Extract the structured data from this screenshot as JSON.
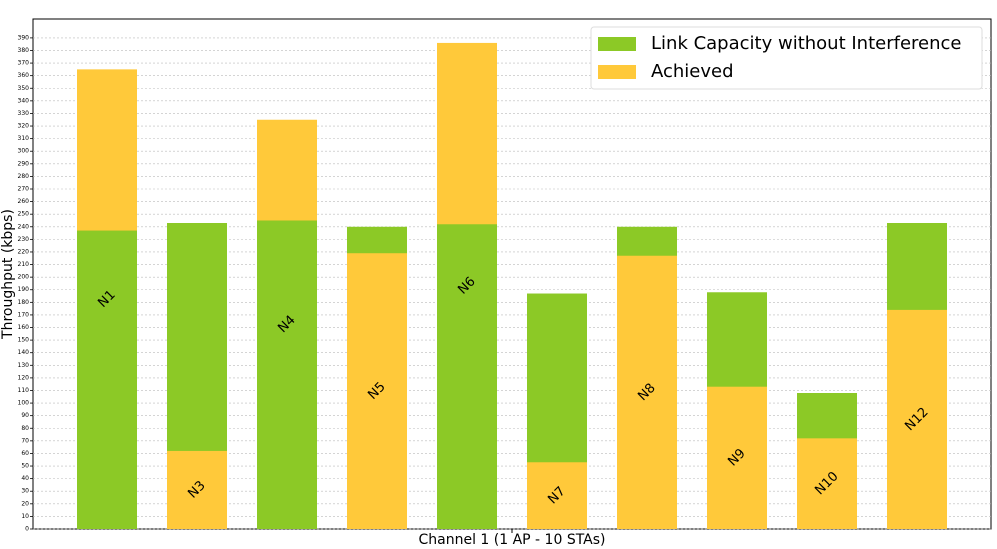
{
  "chart_data": {
    "type": "overlap_bar",
    "xlabel": "Channel 1 (1 AP - 10 STAs)",
    "ylabel": "Throughput (kbps)",
    "categories": [
      "N1",
      "N3",
      "N4",
      "N5",
      "N6",
      "N7",
      "N8",
      "N9",
      "N10",
      "N12"
    ],
    "series": [
      {
        "name": "Link Capacity without Interference",
        "color": "#8cc926",
        "values": [
          237,
          243,
          245,
          240,
          242,
          187,
          240,
          188,
          108,
          243
        ]
      },
      {
        "name": "Achieved",
        "color": "#ffc93a",
        "values": [
          365,
          62,
          325,
          219,
          386,
          53,
          217,
          113,
          72,
          174
        ]
      }
    ],
    "ylim": [
      0,
      405
    ],
    "yticks": [
      0,
      10,
      20,
      30,
      40,
      50,
      60,
      70,
      80,
      90,
      100,
      110,
      120,
      130,
      140,
      150,
      160,
      170,
      180,
      190,
      200,
      210,
      220,
      230,
      240,
      250,
      260,
      270,
      280,
      290,
      300,
      310,
      320,
      330,
      340,
      350,
      360,
      370,
      380,
      390
    ],
    "grid": true,
    "legend": "upper right"
  }
}
